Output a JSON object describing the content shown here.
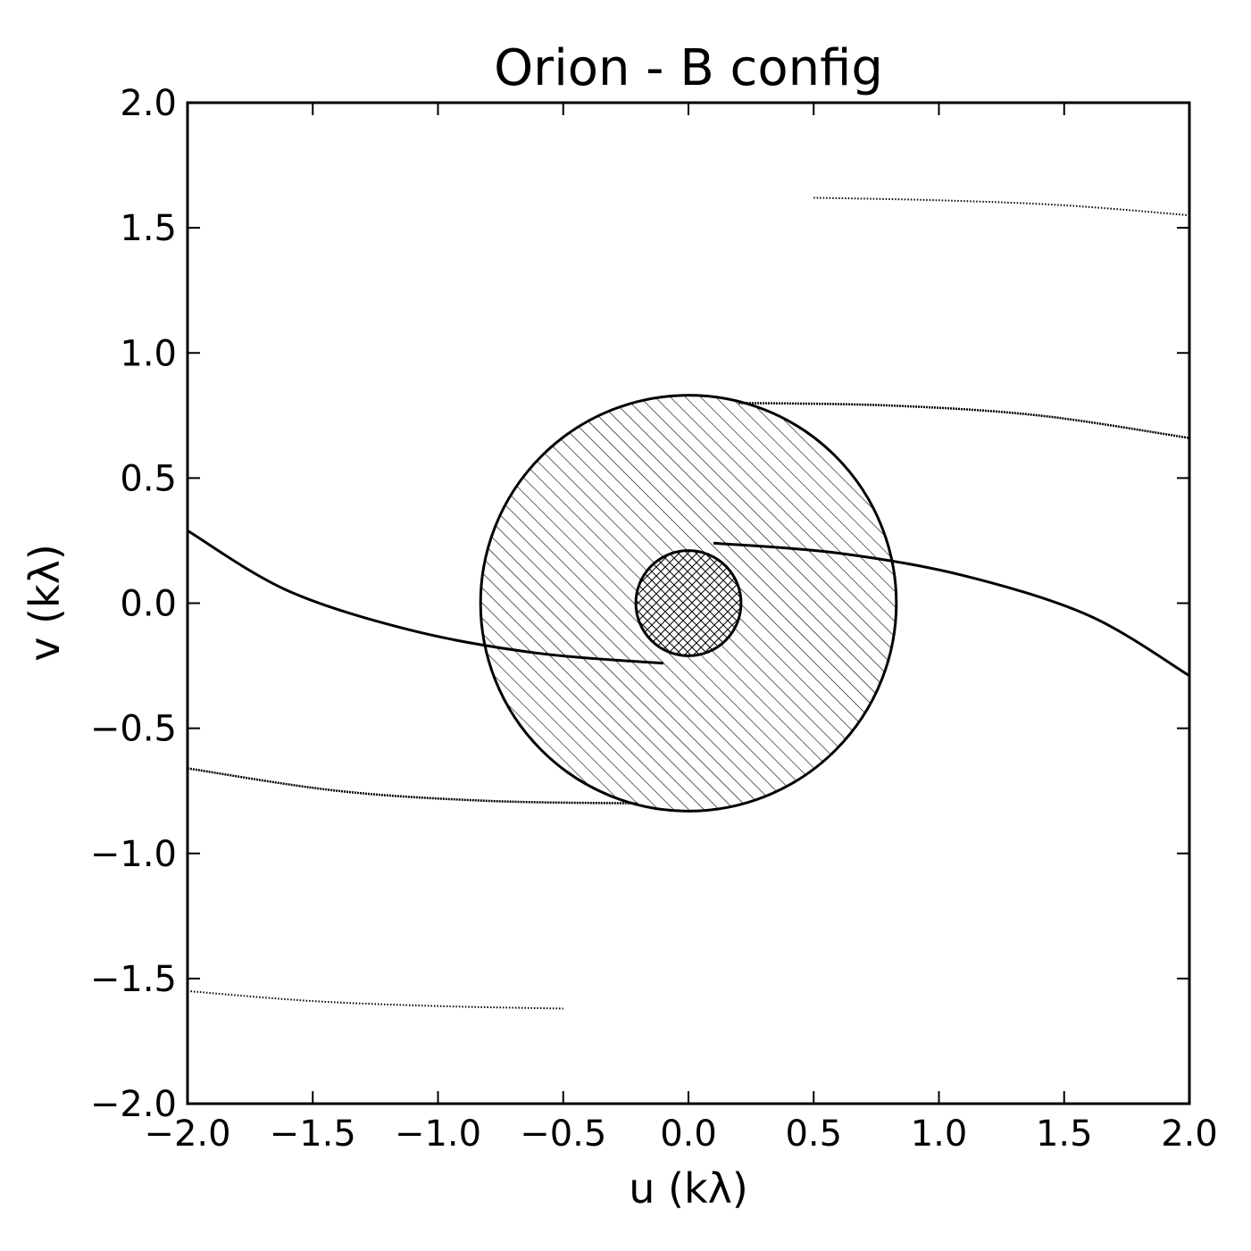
{
  "chart_data": {
    "type": "scatter",
    "title": "Orion - B config",
    "xlabel": "u (kλ)",
    "ylabel": "v (kλ)",
    "xlim": [
      -2.0,
      2.0
    ],
    "ylim": [
      -2.0,
      2.0
    ],
    "x_ticks": [
      "−2.0",
      "−1.5",
      "−1.0",
      "−0.5",
      "0.0",
      "0.5",
      "1.0",
      "1.5",
      "2.0"
    ],
    "y_ticks": [
      "2.0",
      "1.5",
      "1.0",
      "0.5",
      "0.0",
      "−0.5",
      "−1.0",
      "−1.5",
      "−2.0"
    ],
    "x_tick_values": [
      -2.0,
      -1.5,
      -1.0,
      -0.5,
      0.0,
      0.5,
      1.0,
      1.5,
      2.0
    ],
    "y_tick_values": [
      2.0,
      1.5,
      1.0,
      0.5,
      0.0,
      -0.5,
      -1.0,
      -1.5,
      -2.0
    ],
    "grid": false,
    "legend": "none",
    "regions": [
      {
        "shape": "circle",
        "center": [
          0.0,
          0.0
        ],
        "radius": 0.83,
        "hatch": "diagonal"
      },
      {
        "shape": "circle",
        "center": [
          0.0,
          0.0
        ],
        "radius": 0.21,
        "hatch": "crosshatch"
      }
    ],
    "tracks": [
      {
        "style": "dotted",
        "points": [
          [
            0.5,
            1.62
          ],
          [
            1.0,
            1.61
          ],
          [
            1.5,
            1.59
          ],
          [
            2.0,
            1.55
          ]
        ]
      },
      {
        "style": "dotted",
        "points": [
          [
            -2.0,
            -1.55
          ],
          [
            -1.5,
            -1.59
          ],
          [
            -1.0,
            -1.61
          ],
          [
            -0.5,
            -1.62
          ]
        ]
      },
      {
        "style": "dense",
        "points": [
          [
            0.2,
            0.8
          ],
          [
            0.8,
            0.79
          ],
          [
            1.4,
            0.75
          ],
          [
            2.0,
            0.66
          ]
        ]
      },
      {
        "style": "dense",
        "points": [
          [
            -2.0,
            -0.66
          ],
          [
            -1.4,
            -0.75
          ],
          [
            -0.8,
            -0.79
          ],
          [
            -0.2,
            -0.8
          ]
        ]
      },
      {
        "style": "solid",
        "points": [
          [
            0.1,
            0.24
          ],
          [
            0.6,
            0.2
          ],
          [
            1.1,
            0.11
          ],
          [
            1.6,
            -0.05
          ],
          [
            2.0,
            -0.29
          ]
        ]
      },
      {
        "style": "solid",
        "points": [
          [
            -2.0,
            0.29
          ],
          [
            -1.6,
            0.05
          ],
          [
            -1.1,
            -0.11
          ],
          [
            -0.6,
            -0.2
          ],
          [
            -0.1,
            -0.24
          ]
        ]
      }
    ]
  }
}
